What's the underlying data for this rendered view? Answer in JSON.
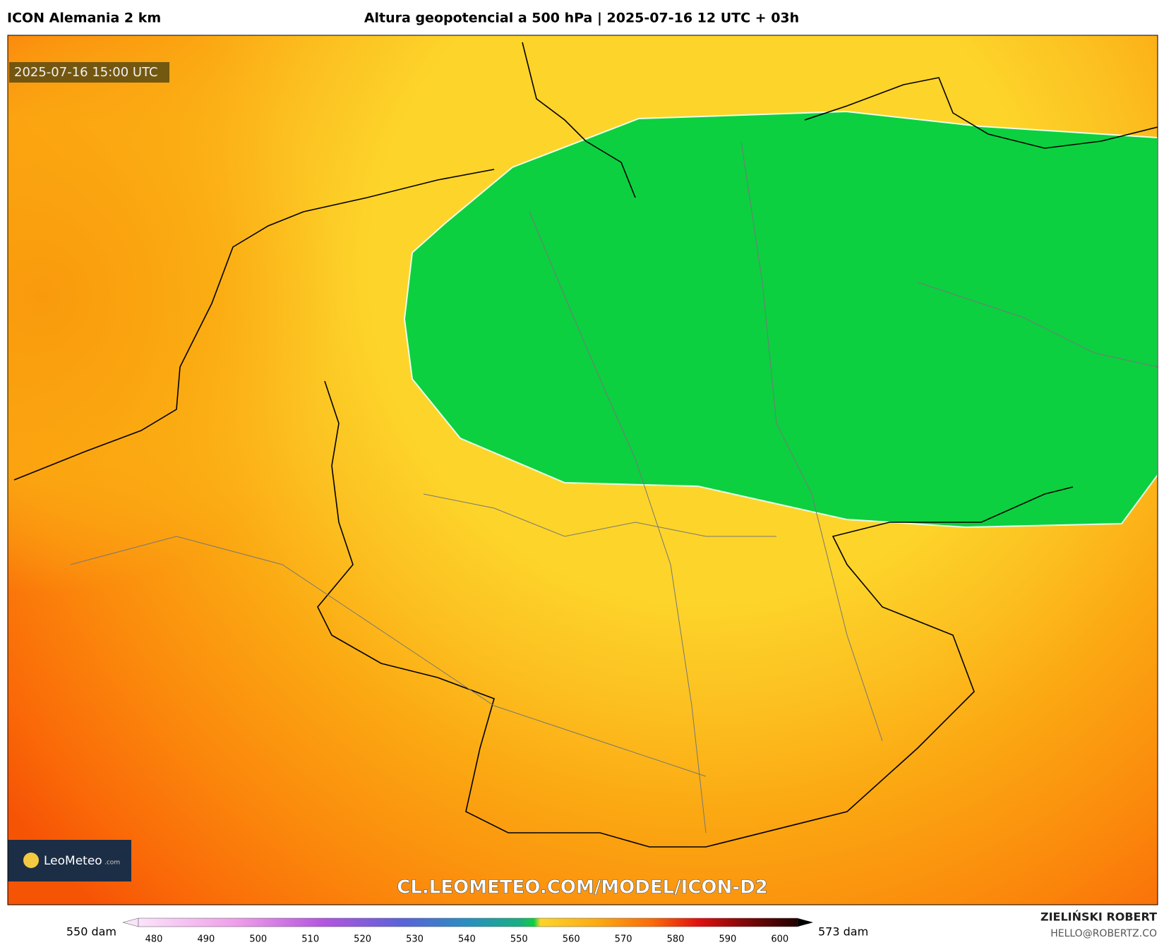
{
  "header": {
    "model": "ICON Alemania 2 km",
    "title": "Altura geopotencial a 500 hPa | 2025-07-16 12 UTC + 03h"
  },
  "map": {
    "valid_time": "2025-07-16 15:00 UTC",
    "watermark": "CL.LEOMETEO.COM/MODEL/ICON-D2",
    "logo": {
      "name": "LeoMeteo",
      "suffix": ".com"
    }
  },
  "colorbar": {
    "min_label": "550 dam",
    "max_label": "573 dam",
    "ticks": [
      480,
      490,
      500,
      510,
      520,
      530,
      540,
      550,
      560,
      570,
      580,
      590,
      600
    ]
  },
  "footer": {
    "author": "ZIELIŃSKI ROBERT",
    "email": "HELLO@ROBERTZ.CO"
  }
}
